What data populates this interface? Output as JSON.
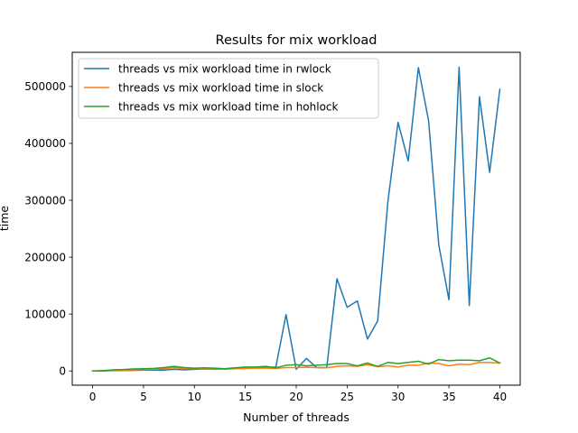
{
  "chart_data": {
    "type": "line",
    "title": "Results for mix workload",
    "xlabel": "Number of threads",
    "ylabel": "time",
    "xlim": [
      -2,
      42
    ],
    "ylim": [
      -25000,
      560000
    ],
    "xticks": [
      0,
      5,
      10,
      15,
      20,
      25,
      30,
      35,
      40
    ],
    "yticks": [
      0,
      100000,
      200000,
      300000,
      400000,
      500000
    ],
    "grid": false,
    "legend_position": "top-left",
    "x": [
      0,
      1,
      2,
      3,
      4,
      5,
      6,
      7,
      8,
      9,
      10,
      11,
      12,
      13,
      14,
      15,
      16,
      17,
      18,
      19,
      20,
      21,
      22,
      23,
      24,
      25,
      26,
      27,
      28,
      29,
      30,
      31,
      32,
      33,
      34,
      35,
      36,
      37,
      38,
      39,
      40
    ],
    "series": [
      {
        "name": "threads vs mix workload time in rwlock",
        "color": "#1f77b4",
        "values": [
          0,
          0,
          500,
          1000,
          1000,
          1500,
          1500,
          1500,
          3000,
          2000,
          3000,
          3500,
          3000,
          4000,
          5000,
          5000,
          6000,
          6000,
          7000,
          99000,
          3000,
          22000,
          6000,
          6000,
          162000,
          112000,
          123000,
          56000,
          88000,
          297000,
          437000,
          369000,
          533000,
          440000,
          222000,
          125000,
          534000,
          115000,
          482000,
          349000,
          495000
        ]
      },
      {
        "name": "threads vs mix workload time in slock",
        "color": "#ff7f0e",
        "values": [
          0,
          500,
          1000,
          1500,
          2000,
          2500,
          3000,
          4000,
          6000,
          4000,
          4500,
          4000,
          3500,
          3000,
          4000,
          4500,
          5000,
          5000,
          4500,
          6000,
          6000,
          6500,
          6000,
          5500,
          8000,
          9000,
          8000,
          11000,
          7500,
          9000,
          7000,
          10000,
          10000,
          14000,
          13000,
          9000,
          12000,
          11000,
          15000,
          15000,
          14000
        ]
      },
      {
        "name": "threads vs mix workload time in hohlock",
        "color": "#2ca02c",
        "values": [
          0,
          500,
          2000,
          2500,
          3500,
          4000,
          4500,
          6000,
          8000,
          6000,
          5000,
          5500,
          5000,
          4000,
          5500,
          7000,
          7000,
          8000,
          5500,
          10000,
          11000,
          9000,
          10000,
          11000,
          13000,
          13000,
          9000,
          14000,
          8000,
          15000,
          13000,
          15000,
          17000,
          12000,
          20000,
          18000,
          19000,
          19000,
          18000,
          23000,
          14000
        ]
      }
    ]
  }
}
